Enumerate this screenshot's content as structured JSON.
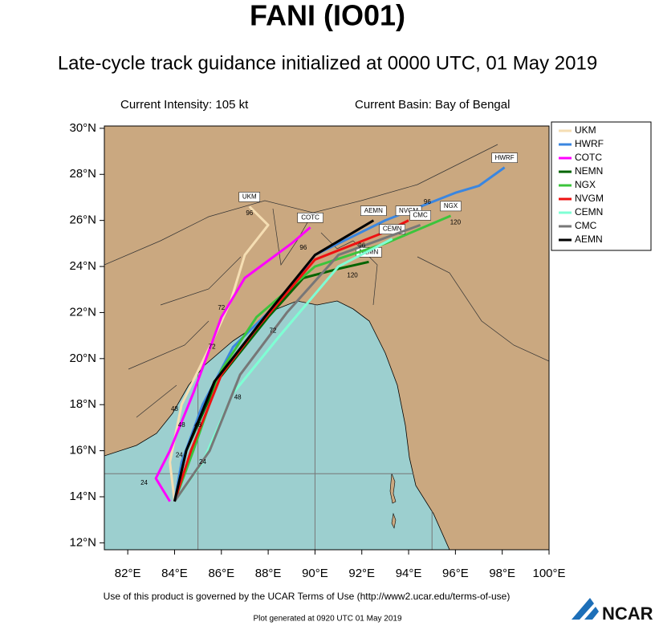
{
  "map": {
    "title": "FANI (IO01)",
    "subtitle": "Late-cycle track guidance initialized at 0000 UTC, 01 May 2019",
    "intensity": "Current Intensity: 105 kt",
    "basin": "Current Basin: Bay of Bengal",
    "footer": "Use of this product is governed by the UCAR Terms of Use (http://www2.ucar.edu/terms-of-use)",
    "generated": "Plot generated at 0920 UTC   01 May 2019",
    "logo": "NCAR",
    "xlim": [
      81,
      100
    ],
    "ylim": [
      11.7,
      30.1
    ],
    "xticks": [
      {
        "value": 82,
        "label": "82°E"
      },
      {
        "value": 84,
        "label": "84°E"
      },
      {
        "value": 86,
        "label": "86°E"
      },
      {
        "value": 88,
        "label": "88°E"
      },
      {
        "value": 90,
        "label": "90°E"
      },
      {
        "value": 92,
        "label": "92°E"
      },
      {
        "value": 94,
        "label": "94°E"
      },
      {
        "value": 96,
        "label": "96°E"
      },
      {
        "value": 98,
        "label": "98°E"
      },
      {
        "value": 100,
        "label": "100°E"
      }
    ],
    "yticks": [
      {
        "value": 12,
        "label": "12°N"
      },
      {
        "value": 14,
        "label": "14°N"
      },
      {
        "value": 16,
        "label": "16°N"
      },
      {
        "value": 18,
        "label": "18°N"
      },
      {
        "value": 20,
        "label": "20°N"
      },
      {
        "value": 22,
        "label": "22°N"
      },
      {
        "value": 24,
        "label": "24°N"
      },
      {
        "value": 26,
        "label": "26°N"
      },
      {
        "value": 28,
        "label": "28°N"
      },
      {
        "value": 30,
        "label": "30°N"
      }
    ],
    "grid_lon": [
      85,
      90,
      95
    ],
    "grid_lat": [
      15
    ],
    "tracks": [
      {
        "name": "UKM",
        "color": "#f5deb3",
        "lon": [
          84.0,
          83.8,
          84.3,
          85.5,
          86.4,
          87.0,
          88.0,
          87.2
        ],
        "lat": [
          13.8,
          15.5,
          18.0,
          20.5,
          22.5,
          24.5,
          25.8,
          26.6
        ]
      },
      {
        "name": "HWRF",
        "color": "#3a86e0",
        "lon": [
          84.0,
          84.3,
          85.2,
          86.5,
          88.3,
          90.0,
          93.0,
          96.0,
          97.0,
          98.1
        ],
        "lat": [
          13.8,
          15.5,
          18.0,
          20.5,
          22.3,
          24.5,
          26.0,
          27.2,
          27.5,
          28.3
        ]
      },
      {
        "name": "COTC",
        "color": "#ff00ff",
        "lon": [
          83.8,
          83.2,
          83.8,
          84.8,
          86.0,
          87.0,
          89.0,
          89.8
        ],
        "lat": [
          13.8,
          14.8,
          16.0,
          18.5,
          21.8,
          23.5,
          25.0,
          25.7
        ]
      },
      {
        "name": "NEMN",
        "color": "#006400",
        "lon": [
          84.0,
          84.5,
          85.8,
          88.0,
          89.5,
          91.0,
          92.3
        ],
        "lat": [
          13.8,
          16.0,
          19.0,
          21.8,
          23.5,
          23.9,
          24.2
        ]
      },
      {
        "name": "NGX",
        "color": "#3cc43c",
        "lon": [
          84.0,
          84.8,
          86.0,
          87.5,
          90.0,
          93.0,
          95.8
        ],
        "lat": [
          13.8,
          16.0,
          19.5,
          21.8,
          24.0,
          25.0,
          26.2
        ]
      },
      {
        "name": "NVGM",
        "color": "#ee1111",
        "lon": [
          84.0,
          84.7,
          86.0,
          87.5,
          90.0,
          93.0,
          94.0
        ],
        "lat": [
          13.8,
          16.0,
          19.3,
          21.3,
          24.3,
          25.5,
          26.0
        ]
      },
      {
        "name": "CEMN",
        "color": "#7fffd4",
        "lon": [
          84.0,
          85.2,
          86.5,
          88.5,
          91.0,
          93.3
        ],
        "lat": [
          13.8,
          15.5,
          18.5,
          21.0,
          24.0,
          25.2
        ]
      },
      {
        "name": "CMC",
        "color": "#777777",
        "lon": [
          84.0,
          85.5,
          86.8,
          88.8,
          91.0,
          94.5
        ],
        "lat": [
          13.8,
          16.0,
          19.3,
          22.0,
          24.5,
          25.8
        ]
      },
      {
        "name": "AEMN",
        "color": "#000000",
        "lon": [
          84.0,
          84.5,
          85.7,
          88.0,
          90.0,
          92.5
        ],
        "lat": [
          13.8,
          16.0,
          19.0,
          22.0,
          24.5,
          26.0
        ]
      }
    ],
    "hour_labels": [
      {
        "label": 96,
        "lon": 87.2,
        "lat": 26.3
      },
      {
        "label": 72,
        "lon": 86.0,
        "lat": 22.2
      },
      {
        "label": 72,
        "lon": 85.6,
        "lat": 20.5
      },
      {
        "label": 48,
        "lon": 84.0,
        "lat": 17.8
      },
      {
        "label": 48,
        "lon": 84.3,
        "lat": 17.1
      },
      {
        "label": 48,
        "lon": 85.0,
        "lat": 17.1
      },
      {
        "label": 48,
        "lon": 86.7,
        "lat": 18.3
      },
      {
        "label": 24,
        "lon": 82.7,
        "lat": 14.6
      },
      {
        "label": 24,
        "lon": 84.2,
        "lat": 15.8
      },
      {
        "label": 24,
        "lon": 85.2,
        "lat": 15.5
      },
      {
        "label": 96,
        "lon": 89.5,
        "lat": 24.8
      },
      {
        "label": 96,
        "lon": 92.0,
        "lat": 24.9
      },
      {
        "label": 96,
        "lon": 94.8,
        "lat": 26.8
      },
      {
        "label": 120,
        "lon": 96.0,
        "lat": 25.9
      },
      {
        "label": 120,
        "lon": 91.6,
        "lat": 23.6
      },
      {
        "label": 72,
        "lon": 88.2,
        "lat": 21.2
      }
    ]
  }
}
